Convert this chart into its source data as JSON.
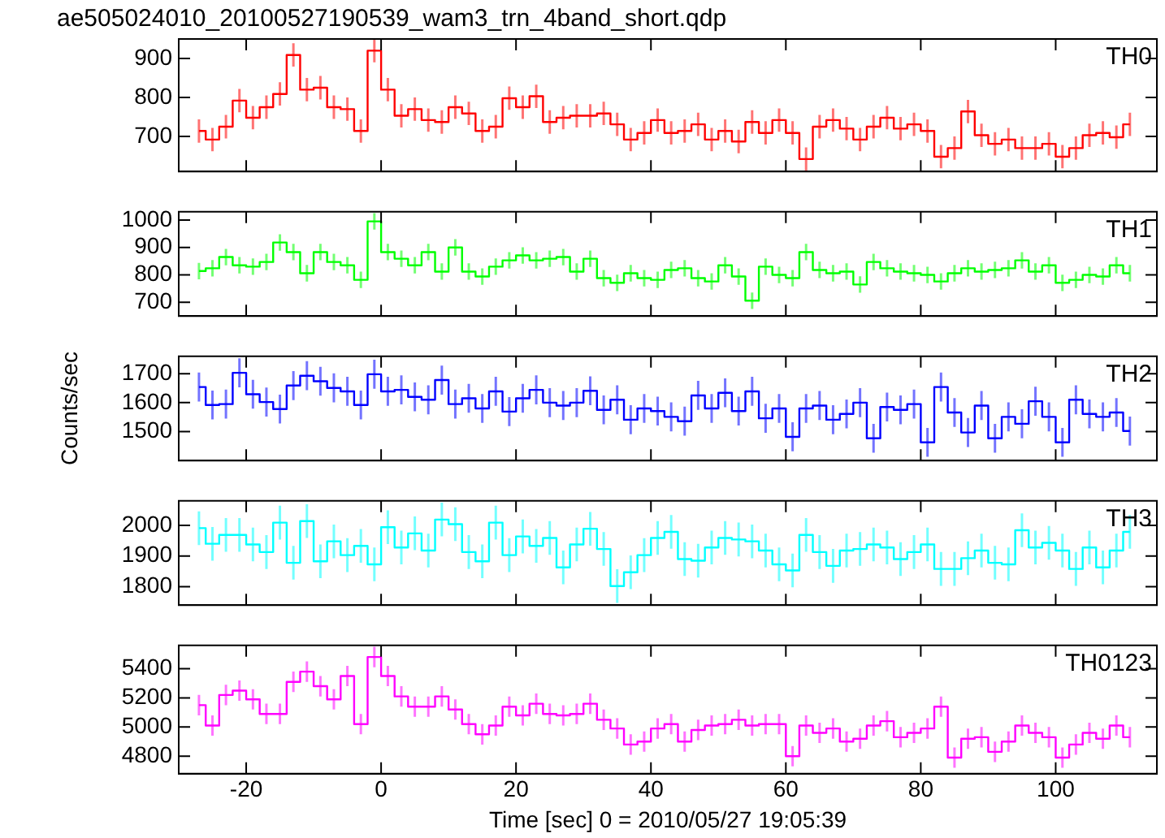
{
  "chart_data": [
    {
      "type": "step",
      "title": "ae505024010_20100527190539_wam3_trn_4band_short.qdp",
      "color": "#ff0000",
      "annotations": [
        "TH0"
      ],
      "tick_labels": "y",
      "x": [
        -27,
        -25,
        -23,
        -21,
        -19,
        -17,
        -15,
        -13,
        -11,
        -9,
        -7,
        -5,
        -3,
        -1,
        1,
        3,
        5,
        7,
        9,
        11,
        13,
        15,
        17,
        19,
        21,
        23,
        25,
        27,
        29,
        31,
        33,
        35,
        37,
        39,
        41,
        43,
        45,
        47,
        49,
        51,
        53,
        55,
        57,
        59,
        61,
        63,
        65,
        67,
        69,
        71,
        73,
        75,
        77,
        79,
        81,
        83,
        85,
        87,
        89,
        91,
        93,
        95,
        97,
        99,
        101,
        103,
        105,
        107,
        109,
        111
      ],
      "values": [
        714,
        692,
        725,
        792,
        748,
        775,
        809,
        909,
        820,
        825,
        775,
        770,
        714,
        920,
        820,
        753,
        770,
        742,
        737,
        775,
        759,
        714,
        725,
        798,
        775,
        803,
        737,
        748,
        753,
        753,
        759,
        731,
        692,
        709,
        742,
        709,
        714,
        731,
        692,
        714,
        687,
        737,
        709,
        742,
        709,
        642,
        725,
        742,
        720,
        692,
        725,
        748,
        720,
        731,
        714,
        648,
        670,
        764,
        703,
        681,
        692,
        670,
        670,
        681,
        648,
        670,
        703,
        709,
        698,
        731
      ],
      "errors": [
        30,
        30,
        30,
        30,
        30,
        30,
        30,
        30,
        30,
        30,
        30,
        30,
        30,
        30,
        30,
        30,
        30,
        30,
        30,
        30,
        30,
        30,
        30,
        30,
        30,
        30,
        30,
        30,
        30,
        30,
        30,
        30,
        30,
        30,
        30,
        30,
        30,
        30,
        30,
        30,
        30,
        30,
        30,
        30,
        30,
        30,
        30,
        30,
        30,
        30,
        30,
        30,
        30,
        30,
        30,
        30,
        30,
        30,
        30,
        30,
        30,
        30,
        30,
        30,
        30,
        30,
        30,
        30,
        30,
        30
      ],
      "xlim": [
        -30,
        115
      ],
      "xticks": [
        -20,
        0,
        20,
        40,
        60,
        80,
        100
      ],
      "ylim": [
        610,
        950
      ],
      "yticks": [
        700,
        800,
        900
      ]
    },
    {
      "type": "step",
      "color": "#00ff00",
      "annotations": [
        "TH1"
      ],
      "tick_labels": "y",
      "x": [
        -27,
        -25,
        -23,
        -21,
        -19,
        -17,
        -15,
        -13,
        -11,
        -9,
        -7,
        -5,
        -3,
        -1,
        1,
        3,
        5,
        7,
        9,
        11,
        13,
        15,
        17,
        19,
        21,
        23,
        25,
        27,
        29,
        31,
        33,
        35,
        37,
        39,
        41,
        43,
        45,
        47,
        49,
        51,
        53,
        55,
        57,
        59,
        61,
        63,
        65,
        67,
        69,
        71,
        73,
        75,
        77,
        79,
        81,
        83,
        85,
        87,
        89,
        91,
        93,
        95,
        97,
        99,
        101,
        103,
        105,
        107,
        109,
        111
      ],
      "values": [
        814,
        824,
        865,
        835,
        830,
        847,
        918,
        883,
        806,
        883,
        847,
        835,
        782,
        995,
        883,
        859,
        835,
        883,
        812,
        900,
        812,
        794,
        830,
        853,
        871,
        853,
        859,
        865,
        812,
        859,
        788,
        771,
        806,
        788,
        782,
        818,
        824,
        788,
        776,
        835,
        794,
        706,
        830,
        800,
        788,
        883,
        818,
        806,
        812,
        765,
        847,
        824,
        812,
        806,
        800,
        776,
        806,
        824,
        812,
        818,
        824,
        853,
        812,
        835,
        771,
        782,
        800,
        794,
        835,
        806
      ],
      "errors": [
        30,
        30,
        30,
        30,
        30,
        30,
        30,
        30,
        30,
        30,
        30,
        30,
        30,
        30,
        30,
        30,
        30,
        30,
        30,
        30,
        30,
        30,
        30,
        30,
        30,
        30,
        30,
        30,
        30,
        30,
        30,
        30,
        30,
        30,
        30,
        30,
        30,
        30,
        30,
        30,
        30,
        30,
        30,
        30,
        30,
        30,
        30,
        30,
        30,
        30,
        30,
        30,
        30,
        30,
        30,
        30,
        30,
        30,
        30,
        30,
        30,
        30,
        30,
        30,
        30,
        30,
        30,
        30,
        30,
        30
      ],
      "xlim": [
        -30,
        115
      ],
      "xticks": [
        -20,
        0,
        20,
        40,
        60,
        80,
        100
      ],
      "ylim": [
        650,
        1030
      ],
      "yticks": [
        700,
        800,
        900,
        1000
      ]
    },
    {
      "type": "step",
      "color": "#0000ff",
      "annotations": [
        "TH2"
      ],
      "tick_labels": "y",
      "ylabel": "Counts/sec",
      "x": [
        -27,
        -25,
        -23,
        -21,
        -19,
        -17,
        -15,
        -13,
        -11,
        -9,
        -7,
        -5,
        -3,
        -1,
        1,
        3,
        5,
        7,
        9,
        11,
        13,
        15,
        17,
        19,
        21,
        23,
        25,
        27,
        29,
        31,
        33,
        35,
        37,
        39,
        41,
        43,
        45,
        47,
        49,
        51,
        53,
        55,
        57,
        59,
        61,
        63,
        65,
        67,
        69,
        71,
        73,
        75,
        77,
        79,
        81,
        83,
        85,
        87,
        89,
        91,
        93,
        95,
        97,
        99,
        101,
        103,
        105,
        107,
        109,
        111
      ],
      "values": [
        1654,
        1592,
        1595,
        1703,
        1629,
        1602,
        1578,
        1659,
        1693,
        1674,
        1651,
        1639,
        1592,
        1698,
        1639,
        1644,
        1620,
        1610,
        1678,
        1595,
        1615,
        1580,
        1639,
        1569,
        1615,
        1644,
        1600,
        1590,
        1600,
        1641,
        1575,
        1610,
        1541,
        1580,
        1571,
        1551,
        1536,
        1625,
        1580,
        1634,
        1571,
        1639,
        1546,
        1580,
        1482,
        1580,
        1590,
        1541,
        1561,
        1600,
        1477,
        1585,
        1575,
        1595,
        1463,
        1654,
        1566,
        1497,
        1590,
        1477,
        1551,
        1527,
        1605,
        1551,
        1463,
        1610,
        1561,
        1551,
        1566,
        1502
      ],
      "errors": [
        50,
        50,
        50,
        50,
        50,
        50,
        50,
        50,
        50,
        50,
        50,
        50,
        50,
        50,
        50,
        50,
        50,
        50,
        50,
        50,
        50,
        50,
        50,
        50,
        50,
        50,
        50,
        50,
        50,
        50,
        50,
        50,
        50,
        50,
        50,
        50,
        50,
        50,
        50,
        50,
        50,
        50,
        50,
        50,
        50,
        50,
        50,
        50,
        50,
        50,
        50,
        50,
        50,
        50,
        50,
        50,
        50,
        50,
        50,
        50,
        50,
        50,
        50,
        50,
        50,
        50,
        50,
        50,
        50,
        50
      ],
      "xlim": [
        -30,
        115
      ],
      "xticks": [
        -20,
        0,
        20,
        40,
        60,
        80,
        100
      ],
      "ylim": [
        1400,
        1760
      ],
      "yticks": [
        1500,
        1600,
        1700
      ]
    },
    {
      "type": "step",
      "color": "#00ffff",
      "annotations": [
        "TH3"
      ],
      "tick_labels": "y",
      "x": [
        -27,
        -25,
        -23,
        -21,
        -19,
        -17,
        -15,
        -13,
        -11,
        -9,
        -7,
        -5,
        -3,
        -1,
        1,
        3,
        5,
        7,
        9,
        11,
        13,
        15,
        17,
        19,
        21,
        23,
        25,
        27,
        29,
        31,
        33,
        35,
        37,
        39,
        41,
        43,
        45,
        47,
        49,
        51,
        53,
        55,
        57,
        59,
        61,
        63,
        65,
        67,
        69,
        71,
        73,
        75,
        77,
        79,
        81,
        83,
        85,
        87,
        89,
        91,
        93,
        95,
        97,
        99,
        101,
        103,
        105,
        107,
        109,
        111
      ],
      "values": [
        1991,
        1940,
        1969,
        1969,
        1938,
        1913,
        2009,
        1878,
        2014,
        1883,
        1948,
        1903,
        1933,
        1873,
        1994,
        1928,
        1974,
        1918,
        2019,
        2004,
        1913,
        1883,
        2009,
        1903,
        1964,
        1933,
        1959,
        1863,
        1938,
        1989,
        1923,
        1802,
        1847,
        1903,
        1959,
        1979,
        1890,
        1885,
        1928,
        1959,
        1954,
        1948,
        1918,
        1873,
        1853,
        1969,
        1913,
        1868,
        1918,
        1923,
        1938,
        1928,
        1890,
        1913,
        1938,
        1858,
        1858,
        1893,
        1918,
        1878,
        1873,
        1984,
        1928,
        1943,
        1918,
        1858,
        1928,
        1863,
        1918,
        1979
      ],
      "errors": [
        55,
        55,
        55,
        55,
        55,
        55,
        55,
        55,
        55,
        55,
        55,
        55,
        55,
        55,
        55,
        55,
        55,
        55,
        55,
        55,
        55,
        55,
        55,
        55,
        55,
        55,
        55,
        55,
        55,
        55,
        55,
        55,
        55,
        55,
        55,
        55,
        55,
        55,
        55,
        55,
        55,
        55,
        55,
        55,
        55,
        55,
        55,
        55,
        55,
        55,
        55,
        55,
        55,
        55,
        55,
        55,
        55,
        55,
        55,
        55,
        55,
        55,
        55,
        55,
        55,
        55,
        55,
        55,
        55,
        55
      ],
      "xlim": [
        -30,
        115
      ],
      "xticks": [
        -20,
        0,
        20,
        40,
        60,
        80,
        100
      ],
      "ylim": [
        1740,
        2080
      ],
      "yticks": [
        1800,
        1900,
        2000
      ]
    },
    {
      "type": "step",
      "color": "#ff00ff",
      "annotations": [
        "TH0123"
      ],
      "xlabel": "Time [sec] 0 = 2010/05/27 19:05:39",
      "x": [
        -27,
        -25,
        -23,
        -21,
        -19,
        -17,
        -15,
        -13,
        -11,
        -9,
        -7,
        -5,
        -3,
        -1,
        1,
        3,
        5,
        7,
        9,
        11,
        13,
        15,
        17,
        19,
        21,
        23,
        25,
        27,
        29,
        31,
        33,
        35,
        37,
        39,
        41,
        43,
        45,
        47,
        49,
        51,
        53,
        55,
        57,
        59,
        61,
        63,
        65,
        67,
        69,
        71,
        73,
        75,
        77,
        79,
        81,
        83,
        85,
        87,
        89,
        91,
        93,
        95,
        97,
        99,
        101,
        103,
        105,
        107,
        109,
        111
      ],
      "values": [
        5150,
        5010,
        5220,
        5250,
        5190,
        5090,
        5090,
        5310,
        5380,
        5280,
        5190,
        5350,
        5020,
        5480,
        5350,
        5210,
        5140,
        5140,
        5210,
        5120,
        5020,
        4950,
        5010,
        5140,
        5080,
        5160,
        5090,
        5080,
        5090,
        5160,
        5050,
        4990,
        4880,
        4900,
        4990,
        5020,
        4900,
        4980,
        5010,
        5020,
        5050,
        5010,
        5020,
        5020,
        4800,
        5010,
        4960,
        4990,
        4900,
        4920,
        5010,
        5040,
        4930,
        4960,
        4990,
        5140,
        4790,
        4920,
        4930,
        4830,
        4900,
        5010,
        4960,
        4930,
        4790,
        4880,
        4960,
        4920,
        5010,
        4930
      ],
      "errors": [
        70,
        70,
        70,
        70,
        70,
        70,
        70,
        70,
        70,
        70,
        70,
        70,
        70,
        70,
        70,
        70,
        70,
        70,
        70,
        70,
        70,
        70,
        70,
        70,
        70,
        70,
        70,
        70,
        70,
        70,
        70,
        70,
        70,
        70,
        70,
        70,
        70,
        70,
        70,
        70,
        70,
        70,
        70,
        70,
        70,
        70,
        70,
        70,
        70,
        70,
        70,
        70,
        70,
        70,
        70,
        70,
        70,
        70,
        70,
        70,
        70,
        70,
        70,
        70,
        70,
        70,
        70,
        70,
        70,
        70
      ],
      "xlim": [
        -30,
        115
      ],
      "xticks": [
        -20,
        0,
        20,
        40,
        60,
        80,
        100
      ],
      "ylim": [
        4680,
        5560
      ],
      "yticks": [
        4800,
        5000,
        5200,
        5400
      ]
    }
  ]
}
